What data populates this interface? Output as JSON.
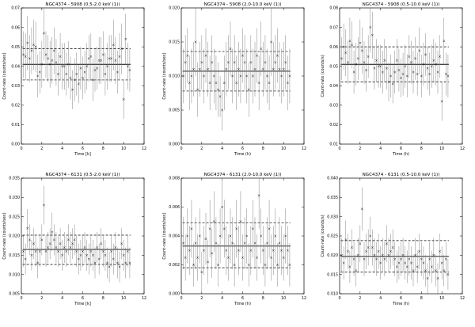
{
  "chart_data": [
    {
      "type": "scatter",
      "title": "NGC4374 - 5908 (0.5-2.0 keV (1))",
      "xlabel": "Time [k]",
      "ylabel": "Count-rate (counts/sec)",
      "xlim": [
        0,
        12
      ],
      "ylim": [
        0,
        0.07
      ],
      "xticks": [
        "0",
        "2",
        "4",
        "6",
        "8",
        "10",
        "12"
      ],
      "yticks": [
        "0.00",
        "0.01",
        "0.02",
        "0.03",
        "0.04",
        "0.05",
        "0.06",
        "0.07"
      ],
      "mean": 0.041,
      "band": [
        0.033,
        0.049
      ],
      "x": [
        0.2,
        0.4,
        0.6,
        0.8,
        1.0,
        1.2,
        1.4,
        1.6,
        1.8,
        2.0,
        2.2,
        2.4,
        2.6,
        2.8,
        3.0,
        3.2,
        3.4,
        3.6,
        3.8,
        4.0,
        4.2,
        4.4,
        4.6,
        4.8,
        5.0,
        5.2,
        5.4,
        5.6,
        5.8,
        6.0,
        6.2,
        6.4,
        6.6,
        6.8,
        7.0,
        7.2,
        7.4,
        7.6,
        7.8,
        8.0,
        8.2,
        8.4,
        8.6,
        8.8,
        9.0,
        9.2,
        9.4,
        9.6,
        9.8,
        10.0,
        10.2,
        10.4,
        10.6
      ],
      "y": [
        0.046,
        0.045,
        0.052,
        0.044,
        0.048,
        0.051,
        0.05,
        0.035,
        0.037,
        0.041,
        0.057,
        0.046,
        0.044,
        0.041,
        0.043,
        0.048,
        0.042,
        0.036,
        0.045,
        0.04,
        0.04,
        0.036,
        0.041,
        0.034,
        0.028,
        0.033,
        0.036,
        0.031,
        0.039,
        0.034,
        0.037,
        0.04,
        0.044,
        0.045,
        0.033,
        0.038,
        0.039,
        0.043,
        0.043,
        0.046,
        0.036,
        0.04,
        0.044,
        0.044,
        0.051,
        0.043,
        0.037,
        0.045,
        0.049,
        0.023,
        0.054,
        0.04,
        0.038
      ],
      "err": [
        0.012,
        0.012,
        0.014,
        0.012,
        0.012,
        0.013,
        0.013,
        0.011,
        0.011,
        0.012,
        0.014,
        0.012,
        0.012,
        0.012,
        0.012,
        0.012,
        0.012,
        0.011,
        0.012,
        0.012,
        0.012,
        0.011,
        0.012,
        0.011,
        0.01,
        0.011,
        0.011,
        0.01,
        0.011,
        0.011,
        0.011,
        0.012,
        0.012,
        0.012,
        0.011,
        0.011,
        0.011,
        0.012,
        0.012,
        0.012,
        0.011,
        0.012,
        0.012,
        0.012,
        0.013,
        0.012,
        0.011,
        0.012,
        0.013,
        0.01,
        0.013,
        0.012,
        0.011
      ]
    },
    {
      "type": "scatter",
      "title": "NGC4374 - 5908 (2.0-10.0 keV (1))",
      "xlabel": "Time (h)",
      "ylabel": "Count-rate (counts/sec)",
      "xlim": [
        0,
        12
      ],
      "ylim": [
        0,
        0.02
      ],
      "xticks": [
        "0",
        "2",
        "4",
        "6",
        "8",
        "10",
        "12"
      ],
      "yticks": [
        "0.000",
        "0.005",
        "0.010",
        "0.015",
        "0.020"
      ],
      "mean": 0.0107,
      "band": [
        0.0078,
        0.0136
      ],
      "x": [
        0.2,
        0.4,
        0.6,
        0.8,
        1.0,
        1.2,
        1.4,
        1.6,
        1.8,
        2.0,
        2.2,
        2.4,
        2.6,
        2.8,
        3.0,
        3.2,
        3.4,
        3.6,
        3.8,
        4.0,
        4.2,
        4.4,
        4.6,
        4.8,
        5.0,
        5.2,
        5.4,
        5.6,
        5.8,
        6.0,
        6.2,
        6.4,
        6.6,
        6.8,
        7.0,
        7.2,
        7.4,
        7.6,
        7.8,
        8.0,
        8.2,
        8.4,
        8.6,
        8.8,
        9.0,
        9.2,
        9.4,
        9.6,
        9.8,
        10.0,
        10.2,
        10.4,
        10.6
      ],
      "y": [
        0.01,
        0.012,
        0.013,
        0.009,
        0.01,
        0.011,
        0.015,
        0.008,
        0.011,
        0.012,
        0.01,
        0.013,
        0.011,
        0.009,
        0.012,
        0.01,
        0.009,
        0.008,
        0.007,
        0.005,
        0.009,
        0.011,
        0.012,
        0.014,
        0.01,
        0.012,
        0.009,
        0.011,
        0.01,
        0.013,
        0.012,
        0.01,
        0.008,
        0.012,
        0.01,
        0.011,
        0.013,
        0.009,
        0.014,
        0.011,
        0.012,
        0.01,
        0.009,
        0.015,
        0.011,
        0.012,
        0.013,
        0.011,
        0.01,
        0.011,
        0.012,
        0.009,
        0.01
      ],
      "err": [
        0.004,
        0.004,
        0.004,
        0.004,
        0.004,
        0.004,
        0.005,
        0.004,
        0.004,
        0.004,
        0.004,
        0.004,
        0.004,
        0.004,
        0.004,
        0.004,
        0.004,
        0.004,
        0.003,
        0.003,
        0.004,
        0.004,
        0.004,
        0.004,
        0.004,
        0.004,
        0.004,
        0.004,
        0.004,
        0.004,
        0.004,
        0.004,
        0.004,
        0.004,
        0.004,
        0.004,
        0.004,
        0.004,
        0.004,
        0.004,
        0.004,
        0.004,
        0.004,
        0.005,
        0.004,
        0.004,
        0.004,
        0.004,
        0.004,
        0.004,
        0.004,
        0.004,
        0.004
      ]
    },
    {
      "type": "scatter",
      "title": "NGC4374 - 5908 (0.5-10.0 keV (1))",
      "xlabel": "Time (h)",
      "ylabel": "Count-rate (counts/s)",
      "xlim": [
        0,
        12
      ],
      "ylim": [
        0.01,
        0.08
      ],
      "xticks": [
        "0",
        "2",
        "4",
        "6",
        "8",
        "10",
        "12"
      ],
      "yticks": [
        "0.01",
        "0.02",
        "0.03",
        "0.04",
        "0.05",
        "0.06",
        "0.07",
        "0.08"
      ],
      "mean": 0.051,
      "band": [
        0.042,
        0.06
      ],
      "x": [
        0.2,
        0.4,
        0.6,
        0.8,
        1.0,
        1.2,
        1.4,
        1.6,
        1.8,
        2.0,
        2.2,
        2.4,
        2.6,
        2.8,
        3.0,
        3.2,
        3.4,
        3.6,
        3.8,
        4.0,
        4.2,
        4.4,
        4.6,
        4.8,
        5.0,
        5.2,
        5.4,
        5.6,
        5.8,
        6.0,
        6.2,
        6.4,
        6.6,
        6.8,
        7.0,
        7.2,
        7.4,
        7.6,
        7.8,
        8.0,
        8.2,
        8.4,
        8.6,
        8.8,
        9.0,
        9.2,
        9.4,
        9.6,
        9.8,
        10.0,
        10.2,
        10.4,
        10.6
      ],
      "y": [
        0.054,
        0.06,
        0.057,
        0.052,
        0.063,
        0.061,
        0.047,
        0.051,
        0.054,
        0.062,
        0.058,
        0.052,
        0.048,
        0.055,
        0.07,
        0.066,
        0.049,
        0.053,
        0.05,
        0.05,
        0.047,
        0.053,
        0.049,
        0.042,
        0.045,
        0.041,
        0.047,
        0.053,
        0.048,
        0.044,
        0.046,
        0.05,
        0.045,
        0.055,
        0.052,
        0.047,
        0.054,
        0.046,
        0.058,
        0.045,
        0.051,
        0.056,
        0.049,
        0.046,
        0.05,
        0.053,
        0.051,
        0.047,
        0.055,
        0.032,
        0.063,
        0.046,
        0.045
      ],
      "err": [
        0.011,
        0.012,
        0.012,
        0.011,
        0.012,
        0.012,
        0.011,
        0.011,
        0.011,
        0.012,
        0.012,
        0.011,
        0.011,
        0.011,
        0.013,
        0.012,
        0.011,
        0.011,
        0.011,
        0.011,
        0.011,
        0.011,
        0.011,
        0.01,
        0.011,
        0.01,
        0.011,
        0.011,
        0.011,
        0.01,
        0.011,
        0.011,
        0.011,
        0.011,
        0.011,
        0.011,
        0.011,
        0.011,
        0.012,
        0.011,
        0.011,
        0.011,
        0.011,
        0.011,
        0.011,
        0.011,
        0.011,
        0.011,
        0.011,
        0.01,
        0.012,
        0.011,
        0.011
      ]
    },
    {
      "type": "scatter",
      "title": "NGC4374 - 6131 (0.5-2.0 keV (1))",
      "xlabel": "Time [k]",
      "ylabel": "Count-rate (counts/sec)",
      "xlim": [
        0,
        12
      ],
      "ylim": [
        0.005,
        0.035
      ],
      "xticks": [
        "0",
        "2",
        "4",
        "6",
        "8",
        "10",
        "12"
      ],
      "yticks": [
        "0.005",
        "0.010",
        "0.015",
        "0.020",
        "0.025",
        "0.030",
        "0.035"
      ],
      "mean": 0.0165,
      "band": [
        0.0126,
        0.0202
      ],
      "x": [
        0.2,
        0.4,
        0.6,
        0.8,
        1.0,
        1.2,
        1.4,
        1.6,
        1.8,
        2.0,
        2.2,
        2.4,
        2.6,
        2.8,
        3.0,
        3.2,
        3.4,
        3.6,
        3.8,
        4.0,
        4.2,
        4.4,
        4.6,
        4.8,
        5.0,
        5.2,
        5.4,
        5.6,
        5.8,
        6.0,
        6.2,
        6.4,
        6.6,
        6.8,
        7.0,
        7.2,
        7.4,
        7.6,
        7.8,
        8.0,
        8.2,
        8.4,
        8.6,
        8.8,
        9.0,
        9.2,
        9.4,
        9.6,
        9.8,
        10.0,
        10.2,
        10.4,
        10.6
      ],
      "y": [
        0.016,
        0.014,
        0.022,
        0.019,
        0.015,
        0.018,
        0.016,
        0.013,
        0.016,
        0.019,
        0.028,
        0.016,
        0.017,
        0.018,
        0.021,
        0.019,
        0.017,
        0.016,
        0.018,
        0.015,
        0.017,
        0.016,
        0.019,
        0.017,
        0.018,
        0.019,
        0.016,
        0.014,
        0.015,
        0.016,
        0.017,
        0.015,
        0.014,
        0.016,
        0.015,
        0.013,
        0.017,
        0.014,
        0.018,
        0.016,
        0.015,
        0.013,
        0.012,
        0.016,
        0.014,
        0.017,
        0.013,
        0.012,
        0.018,
        0.015,
        0.013,
        0.016,
        0.013
      ],
      "err": [
        0.004,
        0.004,
        0.005,
        0.004,
        0.004,
        0.004,
        0.004,
        0.004,
        0.004,
        0.004,
        0.005,
        0.004,
        0.004,
        0.004,
        0.005,
        0.004,
        0.004,
        0.004,
        0.004,
        0.004,
        0.004,
        0.004,
        0.004,
        0.004,
        0.004,
        0.004,
        0.004,
        0.004,
        0.004,
        0.004,
        0.004,
        0.004,
        0.004,
        0.004,
        0.004,
        0.004,
        0.004,
        0.004,
        0.004,
        0.004,
        0.004,
        0.004,
        0.004,
        0.004,
        0.004,
        0.004,
        0.004,
        0.004,
        0.004,
        0.004,
        0.004,
        0.004,
        0.004
      ]
    },
    {
      "type": "scatter",
      "title": "NGC4374 - 6131 (2.0-10.0 keV (1))",
      "xlabel": "Time (h)",
      "ylabel": "Count-rate (counts/sec)",
      "xlim": [
        0,
        12
      ],
      "ylim": [
        0,
        0.008
      ],
      "xticks": [
        "0",
        "2",
        "4",
        "6",
        "8",
        "10",
        "12"
      ],
      "yticks": [
        "0.000",
        "0.002",
        "0.004",
        "0.006",
        "0.008"
      ],
      "mean": 0.0033,
      "band": [
        0.0018,
        0.0049
      ],
      "x": [
        0.2,
        0.4,
        0.6,
        0.8,
        1.0,
        1.2,
        1.4,
        1.6,
        1.8,
        2.0,
        2.2,
        2.4,
        2.6,
        2.8,
        3.0,
        3.2,
        3.4,
        3.6,
        3.8,
        4.0,
        4.2,
        4.4,
        4.6,
        4.8,
        5.0,
        5.2,
        5.4,
        5.6,
        5.8,
        6.0,
        6.2,
        6.4,
        6.6,
        6.8,
        7.0,
        7.2,
        7.4,
        7.6,
        7.8,
        8.0,
        8.2,
        8.4,
        8.6,
        8.8,
        9.0,
        9.2,
        9.4,
        9.6,
        9.8,
        10.0,
        10.2,
        10.4,
        10.6
      ],
      "y": [
        0.0035,
        0.0025,
        0.004,
        0.003,
        0.0045,
        0.002,
        0.0035,
        0.0025,
        0.004,
        0.0015,
        0.003,
        0.0038,
        0.0022,
        0.0045,
        0.0028,
        0.005,
        0.0035,
        0.002,
        0.004,
        0.006,
        0.0045,
        0.003,
        0.0025,
        0.004,
        0.0035,
        0.002,
        0.0045,
        0.003,
        0.005,
        0.0025,
        0.0035,
        0.004,
        0.002,
        0.003,
        0.0045,
        0.0035,
        0.0025,
        0.0068,
        0.004,
        0.003,
        0.002,
        0.0035,
        0.0045,
        0.0025,
        0.003,
        0.004,
        0.002,
        0.0035,
        0.003,
        0.0025,
        0.004,
        0.003,
        0.002
      ],
      "err": [
        0.0018,
        0.0016,
        0.0019,
        0.0017,
        0.002,
        0.0015,
        0.0018,
        0.0016,
        0.0019,
        0.0014,
        0.0017,
        0.0018,
        0.0015,
        0.002,
        0.0017,
        0.0021,
        0.0018,
        0.0015,
        0.0019,
        0.0022,
        0.002,
        0.0017,
        0.0016,
        0.0019,
        0.0018,
        0.0015,
        0.002,
        0.0017,
        0.0021,
        0.0016,
        0.0018,
        0.0019,
        0.0015,
        0.0017,
        0.002,
        0.0018,
        0.0016,
        0.0023,
        0.0019,
        0.0017,
        0.0015,
        0.0018,
        0.002,
        0.0016,
        0.0017,
        0.0019,
        0.0015,
        0.0018,
        0.0017,
        0.0016,
        0.0019,
        0.0017,
        0.0015
      ]
    },
    {
      "type": "scatter",
      "title": "NGC4374 - 6131 (0.5-10.0 keV (1))",
      "xlabel": "Time (h)",
      "ylabel": "Count-rate (counts/s)",
      "xlim": [
        0,
        12
      ],
      "ylim": [
        0.01,
        0.04
      ],
      "xticks": [
        "0",
        "2",
        "4",
        "6",
        "8",
        "10",
        "12"
      ],
      "yticks": [
        "0.010",
        "0.015",
        "0.020",
        "0.025",
        "0.030",
        "0.035",
        "0.040"
      ],
      "mean": 0.0197,
      "band": [
        0.0156,
        0.0238
      ],
      "x": [
        0.2,
        0.4,
        0.6,
        0.8,
        1.0,
        1.2,
        1.4,
        1.6,
        1.8,
        2.0,
        2.2,
        2.4,
        2.6,
        2.8,
        3.0,
        3.2,
        3.4,
        3.6,
        3.8,
        4.0,
        4.2,
        4.4,
        4.6,
        4.8,
        5.0,
        5.2,
        5.4,
        5.6,
        5.8,
        6.0,
        6.2,
        6.4,
        6.6,
        6.8,
        7.0,
        7.2,
        7.4,
        7.6,
        7.8,
        8.0,
        8.2,
        8.4,
        8.6,
        8.8,
        9.0,
        9.2,
        9.4,
        9.6,
        9.8,
        10.0,
        10.2,
        10.4,
        10.6
      ],
      "y": [
        0.02,
        0.018,
        0.024,
        0.021,
        0.017,
        0.022,
        0.019,
        0.016,
        0.02,
        0.023,
        0.032,
        0.019,
        0.021,
        0.022,
        0.025,
        0.022,
        0.02,
        0.019,
        0.021,
        0.018,
        0.02,
        0.019,
        0.023,
        0.02,
        0.021,
        0.022,
        0.019,
        0.017,
        0.018,
        0.019,
        0.02,
        0.018,
        0.017,
        0.019,
        0.018,
        0.016,
        0.02,
        0.017,
        0.021,
        0.019,
        0.018,
        0.016,
        0.014,
        0.019,
        0.017,
        0.02,
        0.016,
        0.014,
        0.021,
        0.018,
        0.016,
        0.019,
        0.015
      ],
      "err": [
        0.0045,
        0.0043,
        0.005,
        0.0046,
        0.0042,
        0.0047,
        0.0044,
        0.0041,
        0.0045,
        0.0048,
        0.0056,
        0.0044,
        0.0046,
        0.0047,
        0.005,
        0.0047,
        0.0045,
        0.0044,
        0.0046,
        0.0043,
        0.0045,
        0.0044,
        0.0048,
        0.0045,
        0.0046,
        0.0047,
        0.0044,
        0.0042,
        0.0043,
        0.0044,
        0.0045,
        0.0043,
        0.0042,
        0.0044,
        0.0043,
        0.0041,
        0.0045,
        0.0042,
        0.0046,
        0.0044,
        0.0043,
        0.0041,
        0.0039,
        0.0044,
        0.0042,
        0.0045,
        0.0041,
        0.0039,
        0.0046,
        0.0043,
        0.0041,
        0.0044,
        0.004
      ]
    }
  ]
}
